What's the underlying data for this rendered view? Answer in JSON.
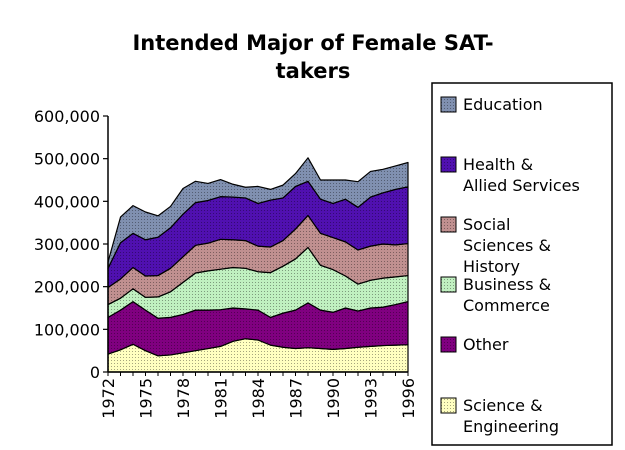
{
  "chart_data": {
    "type": "area",
    "stacked": true,
    "title_lines": [
      "Intended Major of Female SAT-",
      "takers"
    ],
    "xlabel": "",
    "ylabel": "",
    "ylim": [
      0,
      600000
    ],
    "yticks": [
      "0",
      "100,000",
      "200,000",
      "300,000",
      "400,000",
      "500,000",
      "600,000"
    ],
    "x": [
      1972,
      1973,
      1974,
      1975,
      1976,
      1977,
      1978,
      1979,
      1980,
      1981,
      1982,
      1983,
      1984,
      1985,
      1986,
      1987,
      1988,
      1989,
      1990,
      1991,
      1992,
      1993,
      1994,
      1995,
      1996
    ],
    "xtick_labels": [
      "1972",
      "1975",
      "1978",
      "1981",
      "1984",
      "1987",
      "1990",
      "1993",
      "1996"
    ],
    "legend_placement": "right",
    "series": [
      {
        "name": "Science & Engineering",
        "color": "#ffffc0",
        "pattern": "dots",
        "values": [
          42000,
          52000,
          65000,
          50000,
          38000,
          40000,
          45000,
          50000,
          55000,
          60000,
          72000,
          78000,
          75000,
          63000,
          58000,
          55000,
          57000,
          55000,
          53000,
          55000,
          58000,
          60000,
          62000,
          63000,
          64000
        ]
      },
      {
        "name": "Other",
        "color": "#800080",
        "pattern": "dots",
        "values": [
          86000,
          93000,
          100000,
          95000,
          88000,
          88000,
          90000,
          95000,
          90000,
          86000,
          78000,
          70000,
          70000,
          65000,
          80000,
          90000,
          105000,
          90000,
          87000,
          95000,
          85000,
          90000,
          90000,
          95000,
          101000
        ]
      },
      {
        "name": "Business & Commerce",
        "color": "#c0f0c0",
        "pattern": "dots",
        "values": [
          30000,
          28000,
          30000,
          30000,
          50000,
          60000,
          75000,
          87000,
          92000,
          95000,
          95000,
          95000,
          90000,
          105000,
          110000,
          120000,
          130000,
          105000,
          100000,
          75000,
          63000,
          65000,
          68000,
          65000,
          61000
        ]
      },
      {
        "name": "Social Sciences & History",
        "color": "#c09090",
        "pattern": "dots",
        "values": [
          40000,
          45000,
          50000,
          50000,
          50000,
          55000,
          60000,
          65000,
          65000,
          70000,
          65000,
          65000,
          60000,
          60000,
          60000,
          70000,
          75000,
          75000,
          75000,
          80000,
          80000,
          80000,
          80000,
          75000,
          75000
        ]
      },
      {
        "name": "Health & Allied Services",
        "color": "#5010b0",
        "pattern": "dots",
        "values": [
          45000,
          85000,
          80000,
          85000,
          90000,
          95000,
          100000,
          100000,
          100000,
          100000,
          100000,
          100000,
          100000,
          110000,
          100000,
          100000,
          80000,
          80000,
          80000,
          100000,
          100000,
          115000,
          120000,
          130000,
          133000
        ]
      },
      {
        "name": "Education",
        "color": "#8090b0",
        "pattern": "dots",
        "values": [
          15000,
          60000,
          65000,
          65000,
          50000,
          50000,
          60000,
          50000,
          40000,
          40000,
          30000,
          25000,
          40000,
          25000,
          30000,
          30000,
          55000,
          45000,
          55000,
          45000,
          60000,
          60000,
          55000,
          55000,
          57000
        ]
      }
    ]
  }
}
